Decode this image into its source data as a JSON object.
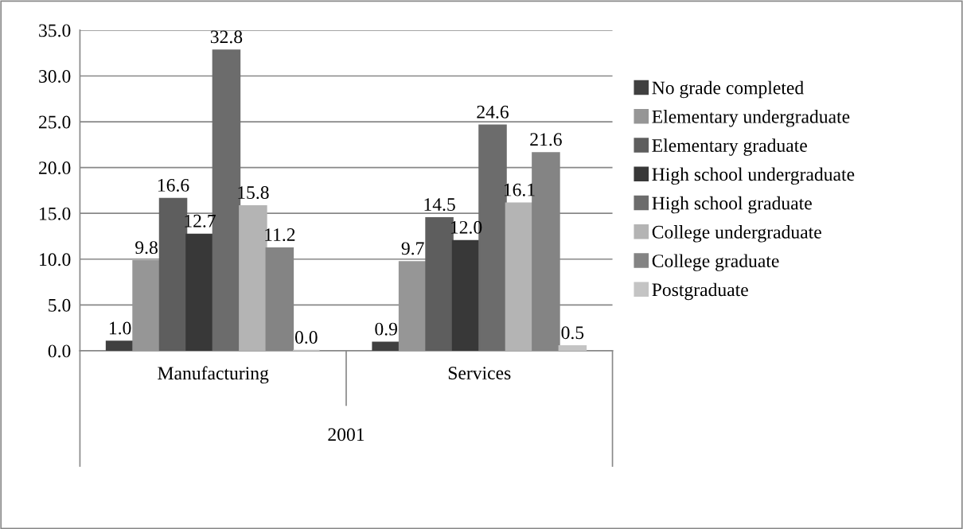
{
  "chart_data": {
    "type": "bar",
    "categories": [
      "Manufacturing",
      "Services"
    ],
    "xlabel": "2001",
    "series": [
      {
        "name": "No grade completed",
        "color": "#404040",
        "values": [
          1.0,
          0.9
        ],
        "value_labels": [
          "1.0",
          "0.9"
        ]
      },
      {
        "name": "Elementary undergraduate",
        "color": "#969696",
        "values": [
          9.8,
          9.7
        ],
        "value_labels": [
          "9.8",
          "9.7"
        ]
      },
      {
        "name": "Elementary graduate",
        "color": "#5e5e5e",
        "values": [
          16.6,
          14.5
        ],
        "value_labels": [
          "16.6",
          "14.5"
        ]
      },
      {
        "name": "High school undergraduate",
        "color": "#383838",
        "values": [
          12.7,
          12.0
        ],
        "value_labels": [
          "12.7",
          "12.0"
        ]
      },
      {
        "name": "High school graduate",
        "color": "#6c6c6c",
        "values": [
          32.8,
          24.6
        ],
        "value_labels": [
          "32.8",
          "24.6"
        ]
      },
      {
        "name": "College undergraduate",
        "color": "#b4b4b4",
        "values": [
          15.8,
          16.1
        ],
        "value_labels": [
          "15.8",
          "16.1"
        ]
      },
      {
        "name": "College graduate",
        "color": "#848484",
        "values": [
          11.2,
          21.6
        ],
        "value_labels": [
          "11.2",
          "21.6"
        ]
      },
      {
        "name": "Postgraduate",
        "color": "#c4c4c4",
        "values": [
          0.0,
          0.5
        ],
        "value_labels": [
          "0.0",
          "0.5"
        ]
      }
    ],
    "ylim": [
      0,
      35
    ],
    "yticks": [
      {
        "value": 0,
        "label": "0.0"
      },
      {
        "value": 5,
        "label": "5.0"
      },
      {
        "value": 10,
        "label": "10.0"
      },
      {
        "value": 15,
        "label": "15.0"
      },
      {
        "value": 20,
        "label": "20.0"
      },
      {
        "value": 25,
        "label": "25.0"
      },
      {
        "value": 30,
        "label": "30.0"
      },
      {
        "value": 35,
        "label": "35.0"
      }
    ],
    "grid": "y",
    "legend": "right"
  }
}
